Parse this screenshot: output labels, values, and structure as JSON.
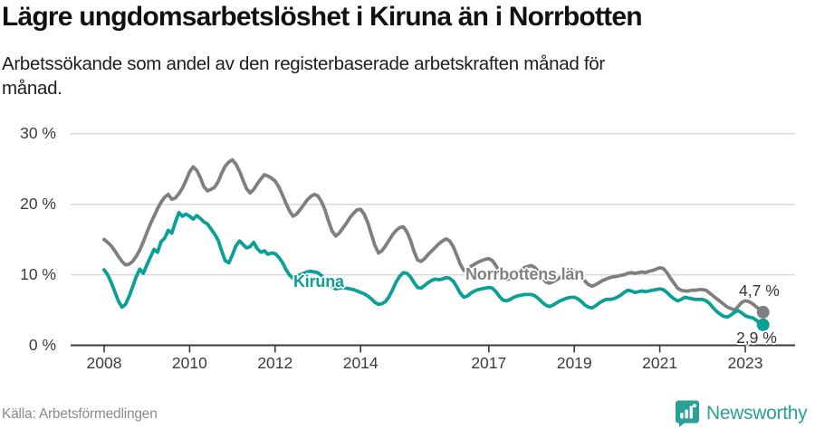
{
  "header": {
    "title": "Lägre ungdomsarbetslöshet i Kiruna än i Norrbotten",
    "subtitle_lines": [
      "Arbetssökande som andel av den registerbaserade arbetskraften månad för",
      "månad."
    ]
  },
  "footer": {
    "source": "Källa: Arbetsförmedlingen",
    "logo_text": "Newsworthy"
  },
  "colors": {
    "kiruna": "#0ba095",
    "norrbotten": "#7f7f7f",
    "norrbotten_label": "#818181",
    "gridline": "#d9d9d9",
    "axis": "#3a3a3a",
    "logo_teal": "#2ba094"
  },
  "chart_data": {
    "type": "line",
    "frequency": "monthly",
    "start_year": 2008,
    "points_per_year": 12,
    "x_ticks": [
      2008,
      2010,
      2012,
      2014,
      2017,
      2019,
      2021,
      2023
    ],
    "y_ticks": [
      {
        "label": "0 %",
        "value": 0
      },
      {
        "label": "10 %",
        "value": 10
      },
      {
        "label": "20 %",
        "value": 20
      },
      {
        "label": "30 %",
        "value": 30
      }
    ],
    "ylim": [
      0,
      30
    ],
    "grid": "horizontal",
    "legend_position": "inline-labels",
    "series": [
      {
        "name": "Norrbottens län",
        "color": "#7f7f7f",
        "end_label": "4,7 %",
        "end_value": 4.7,
        "values": [
          15.0,
          14.6,
          14.1,
          13.4,
          12.6,
          11.9,
          11.4,
          11.5,
          11.9,
          12.6,
          13.5,
          14.7,
          16.0,
          17.2,
          18.3,
          19.4,
          20.3,
          21.0,
          21.4,
          20.7,
          20.9,
          21.5,
          22.3,
          23.4,
          24.6,
          25.3,
          24.8,
          23.8,
          22.5,
          21.9,
          22.1,
          22.4,
          23.2,
          24.4,
          25.4,
          26.0,
          26.3,
          25.7,
          24.7,
          23.4,
          22.2,
          21.6,
          22.1,
          22.9,
          23.6,
          24.2,
          24.0,
          23.7,
          23.3,
          22.5,
          21.4,
          20.2,
          19.1,
          18.3,
          18.6,
          19.2,
          19.9,
          20.6,
          21.1,
          21.4,
          21.2,
          20.4,
          19.2,
          17.6,
          16.2,
          15.5,
          15.9,
          16.6,
          17.3,
          18.1,
          18.7,
          19.2,
          19.3,
          18.6,
          17.4,
          15.8,
          14.2,
          13.1,
          13.4,
          14.1,
          14.9,
          15.7,
          16.3,
          16.7,
          16.8,
          16.1,
          14.9,
          13.3,
          12.1,
          11.9,
          12.3,
          12.9,
          13.4,
          13.9,
          14.4,
          14.8,
          15.1,
          14.8,
          14.0,
          12.8,
          11.5,
          10.6,
          10.8,
          11.2,
          11.5,
          11.8,
          12.0,
          12.2,
          12.3,
          12.0,
          11.3,
          10.4,
          9.6,
          9.3,
          9.5,
          9.9,
          10.3,
          10.7,
          11.0,
          11.2,
          11.3,
          11.0,
          10.4,
          9.6,
          9.0,
          8.8,
          9.0,
          9.3,
          9.6,
          9.9,
          10.2,
          10.4,
          10.5,
          10.3,
          9.8,
          9.1,
          8.6,
          8.4,
          8.6,
          8.9,
          9.2,
          9.4,
          9.6,
          9.7,
          9.8,
          9.9,
          10.0,
          10.2,
          10.3,
          10.2,
          10.3,
          10.4,
          10.3,
          10.5,
          10.6,
          10.8,
          11.0,
          10.9,
          10.3,
          9.5,
          8.8,
          8.1,
          7.8,
          7.7,
          7.7,
          7.8,
          7.8,
          7.9,
          7.9,
          7.8,
          7.4,
          7.0,
          6.6,
          6.2,
          5.8,
          5.4,
          5.2,
          5.0,
          5.5,
          6.1,
          6.3,
          6.2,
          5.9,
          5.5,
          5.1,
          4.7
        ]
      },
      {
        "name": "Kiruna",
        "color": "#0ba095",
        "end_label": "2,9 %",
        "end_value": 2.9,
        "values": [
          10.7,
          10.0,
          8.9,
          7.6,
          6.3,
          5.4,
          5.8,
          6.9,
          8.3,
          9.7,
          10.8,
          10.2,
          11.4,
          12.5,
          13.6,
          13.2,
          14.7,
          15.2,
          16.3,
          15.9,
          17.5,
          18.8,
          18.3,
          18.6,
          18.3,
          17.9,
          18.4,
          18.0,
          17.5,
          17.2,
          16.5,
          15.8,
          14.9,
          13.4,
          12.0,
          11.7,
          12.8,
          14.1,
          14.8,
          14.3,
          13.8,
          14.0,
          14.6,
          13.7,
          13.2,
          13.4,
          12.9,
          13.1,
          13.0,
          12.5,
          11.8,
          10.8,
          10.0,
          9.5,
          9.7,
          10.0,
          10.2,
          10.4,
          10.5,
          10.4,
          10.3,
          9.9,
          9.2,
          8.7,
          8.3,
          8.0,
          8.1,
          8.2,
          8.1,
          8.0,
          7.9,
          7.7,
          7.5,
          7.3,
          7.0,
          6.6,
          6.1,
          5.8,
          5.9,
          6.2,
          6.9,
          7.9,
          9.0,
          9.8,
          10.3,
          10.2,
          9.7,
          8.9,
          8.2,
          8.1,
          8.5,
          8.9,
          9.2,
          9.4,
          9.3,
          9.4,
          9.6,
          9.5,
          9.1,
          8.3,
          7.4,
          6.8,
          7.0,
          7.4,
          7.7,
          7.9,
          8.0,
          8.1,
          8.2,
          8.1,
          7.6,
          6.9,
          6.4,
          6.3,
          6.5,
          6.8,
          7.0,
          7.1,
          7.2,
          7.2,
          7.2,
          7.0,
          6.6,
          6.1,
          5.7,
          5.5,
          5.7,
          6.0,
          6.3,
          6.5,
          6.7,
          6.8,
          6.8,
          6.6,
          6.2,
          5.7,
          5.4,
          5.3,
          5.6,
          6.0,
          6.3,
          6.5,
          6.5,
          6.6,
          6.8,
          7.1,
          7.5,
          7.8,
          7.7,
          7.5,
          7.6,
          7.7,
          7.6,
          7.7,
          7.8,
          7.9,
          8.0,
          7.9,
          7.5,
          7.0,
          6.6,
          6.3,
          6.5,
          6.8,
          6.7,
          6.6,
          6.5,
          6.5,
          6.5,
          6.3,
          5.9,
          5.3,
          4.8,
          4.4,
          4.1,
          4.0,
          4.3,
          4.7,
          4.9,
          4.6,
          4.2,
          4.0,
          3.9,
          3.6,
          3.2,
          2.9
        ]
      }
    ]
  }
}
